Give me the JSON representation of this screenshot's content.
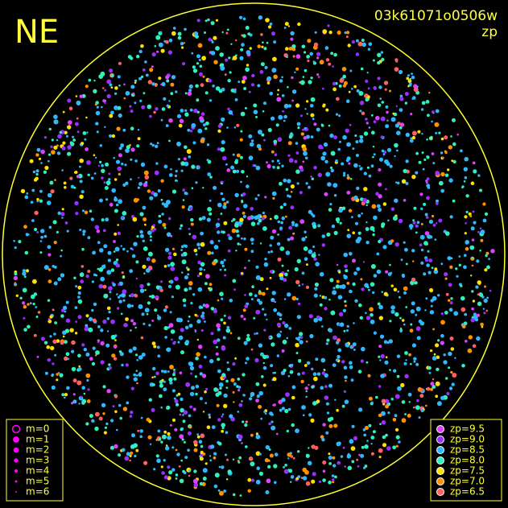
{
  "title": "NE",
  "image_id": "03k61071o0506w",
  "mode": "zp",
  "legend_m": {
    "items": [
      "m=0",
      "m=1",
      "m=2",
      "m=3",
      "m=4",
      "m=5",
      "m=6"
    ],
    "color": "#ff00ff"
  },
  "legend_zp": {
    "items": [
      {
        "label": "zp=9.5",
        "color": "#e040ff"
      },
      {
        "label": "zp=9.0",
        "color": "#9a30ff"
      },
      {
        "label": "zp=8.5",
        "color": "#30b8ff"
      },
      {
        "label": "zp=8.0",
        "color": "#30f0c0"
      },
      {
        "label": "zp=7.5",
        "color": "#ffe000"
      },
      {
        "label": "zp=7.0",
        "color": "#ff9000"
      },
      {
        "label": "zp=6.5",
        "color": "#ff6060"
      }
    ]
  }
}
